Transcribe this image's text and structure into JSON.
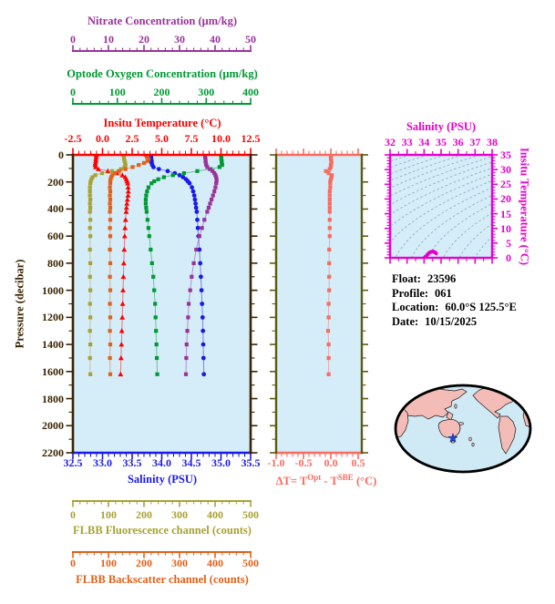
{
  "float_info": {
    "rows": [
      {
        "label": "Float:",
        "value": "23596"
      },
      {
        "label": "Profile:",
        "value": "061"
      },
      {
        "label": "Location:",
        "value": "60.0°S  125.5°E"
      },
      {
        "label": "Date:",
        "value": "10/15/2025"
      }
    ]
  },
  "chart_data": [
    {
      "id": "profile",
      "type": "line",
      "plot_bg": "#d4edf8",
      "y_axis": {
        "label": "Pressure (decibar)",
        "color": "#3a2302",
        "range": [
          0,
          2200
        ],
        "ticks": [
          0,
          200,
          400,
          600,
          800,
          1000,
          1200,
          1400,
          1600,
          1800,
          2000,
          2200
        ],
        "minor_step": 100
      },
      "x_axes": [
        {
          "id": "nitrate",
          "label": "Nitrate Concentration (μm/kg)",
          "color": "#993399",
          "range": [
            0,
            50
          ],
          "ticks": [
            "0",
            "10",
            "20",
            "30",
            "40",
            "50"
          ],
          "minor_step": 2
        },
        {
          "id": "oxygen",
          "label": "Optode Oxygen Concentration (μm/kg)",
          "color": "#009933",
          "range": [
            0,
            400
          ],
          "ticks": [
            "0",
            "100",
            "200",
            "300",
            "400"
          ],
          "minor_step": 20
        },
        {
          "id": "temperature",
          "label": "Insitu Temperature (°C)",
          "color": "#ff0000",
          "range": [
            -2.5,
            12.5
          ],
          "ticks": [
            "-2.5",
            "0.0",
            "2.5",
            "5.0",
            "7.5",
            "10.0",
            "12.5"
          ],
          "minor_step": 0.5
        },
        {
          "id": "salinity",
          "label": "Salinity (PSU)",
          "color": "#1a1ae8",
          "range": [
            32.5,
            35.5
          ],
          "ticks": [
            "32.5",
            "33.0",
            "33.5",
            "34.0",
            "34.5",
            "35.0",
            "35.5"
          ],
          "minor_step": 0.1
        },
        {
          "id": "fluorescence",
          "label": "FLBB Fluorescence channel (counts)",
          "color": "#a9a233",
          "range": [
            0,
            500
          ],
          "ticks": [
            "0",
            "100",
            "200",
            "300",
            "400",
            "500"
          ],
          "minor_step": 20
        },
        {
          "id": "backscatter",
          "label": "FLBB Backscatter channel (counts)",
          "color": "#e2611a",
          "range": [
            0,
            500
          ],
          "ticks": [
            "0",
            "100",
            "200",
            "300",
            "400",
            "500"
          ],
          "minor_step": 20
        }
      ],
      "pressures": [
        0,
        15,
        30,
        45,
        60,
        75,
        90,
        105,
        120,
        135,
        150,
        165,
        180,
        195,
        210,
        240,
        270,
        300,
        330,
        360,
        390,
        420,
        480,
        540,
        600,
        700,
        800,
        900,
        1000,
        1100,
        1200,
        1300,
        1400,
        1500,
        1620
      ],
      "series": [
        {
          "axis": "temperature",
          "marker": "triangle",
          "color": "#ff0000",
          "values": [
            -0.52,
            -0.53,
            -0.55,
            -0.57,
            -0.6,
            -0.62,
            -0.58,
            -0.35,
            0.45,
            1.2,
            1.68,
            1.92,
            2.02,
            2.08,
            2.12,
            2.16,
            2.18,
            2.15,
            2.1,
            2.06,
            2.02,
            2.0,
            1.95,
            1.9,
            1.87,
            1.83,
            1.79,
            1.76,
            1.73,
            1.7,
            1.67,
            1.63,
            1.6,
            1.56,
            1.52
          ]
        },
        {
          "axis": "salinity",
          "marker": "circle",
          "color": "#1a1ae8",
          "values": [
            33.82,
            33.82,
            33.82,
            33.83,
            33.83,
            33.84,
            33.86,
            33.95,
            34.1,
            34.22,
            34.3,
            34.36,
            34.41,
            34.44,
            34.47,
            34.51,
            34.53,
            34.55,
            34.56,
            34.57,
            34.58,
            34.59,
            34.6,
            34.61,
            34.62,
            34.635,
            34.65,
            34.66,
            34.67,
            34.68,
            34.69,
            34.695,
            34.7,
            34.705,
            34.71
          ]
        },
        {
          "axis": "oxygen",
          "marker": "square",
          "color": "#009933",
          "values": [
            333,
            334,
            334,
            335,
            335,
            336,
            330,
            310,
            280,
            250,
            225,
            205,
            192,
            183,
            177,
            170,
            167,
            165,
            164,
            164,
            165,
            166,
            168,
            170,
            172,
            175,
            178,
            181,
            183,
            185,
            186,
            187,
            188,
            189,
            190
          ]
        },
        {
          "axis": "nitrate",
          "marker": "square",
          "color": "#993399",
          "values": [
            37.2,
            37.2,
            37.3,
            37.3,
            37.4,
            37.5,
            37.8,
            38.5,
            39.3,
            39.8,
            40.1,
            40.3,
            40.4,
            40.4,
            40.3,
            40.1,
            39.8,
            39.4,
            39.0,
            38.6,
            38.2,
            37.8,
            37.0,
            36.3,
            35.6,
            34.7,
            34.0,
            33.4,
            33.0,
            32.6,
            32.4,
            32.2,
            32.0,
            31.9,
            31.8
          ]
        },
        {
          "axis": "fluorescence",
          "marker": "square",
          "color": "#a9a233",
          "values": [
            142,
            143,
            144,
            145,
            147,
            148,
            145,
            135,
            110,
            82,
            63,
            55,
            52,
            50,
            49,
            48,
            48,
            48,
            49,
            48,
            49,
            48,
            49,
            48,
            49,
            48,
            49,
            48,
            49,
            48,
            49,
            48,
            49,
            48,
            49
          ]
        },
        {
          "axis": "backscatter",
          "marker": "square",
          "color": "#e2611a",
          "values": [
            204,
            208,
            213,
            210,
            200,
            185,
            168,
            148,
            130,
            118,
            111,
            108,
            106,
            105,
            105,
            104,
            105,
            104,
            105,
            104,
            105,
            104,
            105,
            104,
            105,
            104,
            105,
            104,
            105,
            104,
            105,
            104,
            105,
            104,
            105
          ]
        }
      ]
    },
    {
      "id": "delta_t",
      "type": "line",
      "plot_bg": "#d4edf8",
      "x_axis": {
        "label_parts": {
          "prefix": "ΔT= T",
          "sup1": "Opt",
          "mid": " - T",
          "sup2": "SBE",
          "suffix": " (°C)"
        },
        "color": "#f96a5f",
        "side_color": "#5c5c10",
        "range": [
          -1.05,
          0.567
        ],
        "ticks": [
          "-1.0",
          "-0.5",
          "0.0",
          "0.5"
        ],
        "minor_step": 0.1
      },
      "series": [
        {
          "marker": "square",
          "color": "#f96a5f",
          "values": [
            0.0,
            0.0,
            0.0,
            0.01,
            0.01,
            0.0,
            0.0,
            -0.02,
            -0.09,
            -0.04,
            0.02,
            0.01,
            0.0,
            -0.01,
            -0.01,
            -0.01,
            -0.02,
            -0.02,
            -0.02,
            -0.02,
            -0.02,
            -0.02,
            -0.02,
            -0.02,
            -0.02,
            -0.03,
            -0.03,
            -0.03,
            -0.03,
            -0.04,
            -0.04,
            -0.05,
            -0.04,
            -0.04,
            -0.04
          ]
        }
      ]
    },
    {
      "id": "ts_diagram",
      "type": "scatter",
      "plot_bg": "#d4edf8",
      "x_axis": {
        "label": "Salinity (PSU)",
        "color": "#e600cc",
        "range": [
          32,
          38
        ],
        "ticks": [
          "32",
          "33",
          "34",
          "35",
          "36",
          "37",
          "38"
        ],
        "minor_step": 0.5
      },
      "y_axis": {
        "label": "Insitu Temperature (°C)",
        "color": "#e600cc",
        "range": [
          0,
          35
        ],
        "ticks": [
          "0",
          "5",
          "10",
          "15",
          "20",
          "25",
          "30",
          "35"
        ],
        "minor_step": 1
      },
      "curve_color": "#e600cc",
      "curve_note": "temperature vs salinity pairs taken from the profile chart series",
      "contour_color": "#93aab4"
    },
    {
      "id": "location_map",
      "type": "map",
      "ocean_color": "#cfe9f5",
      "land_color": "#f4bcb6",
      "outline_color": "#000000",
      "marker": {
        "symbol": "star",
        "color": "#2244ee"
      }
    }
  ]
}
